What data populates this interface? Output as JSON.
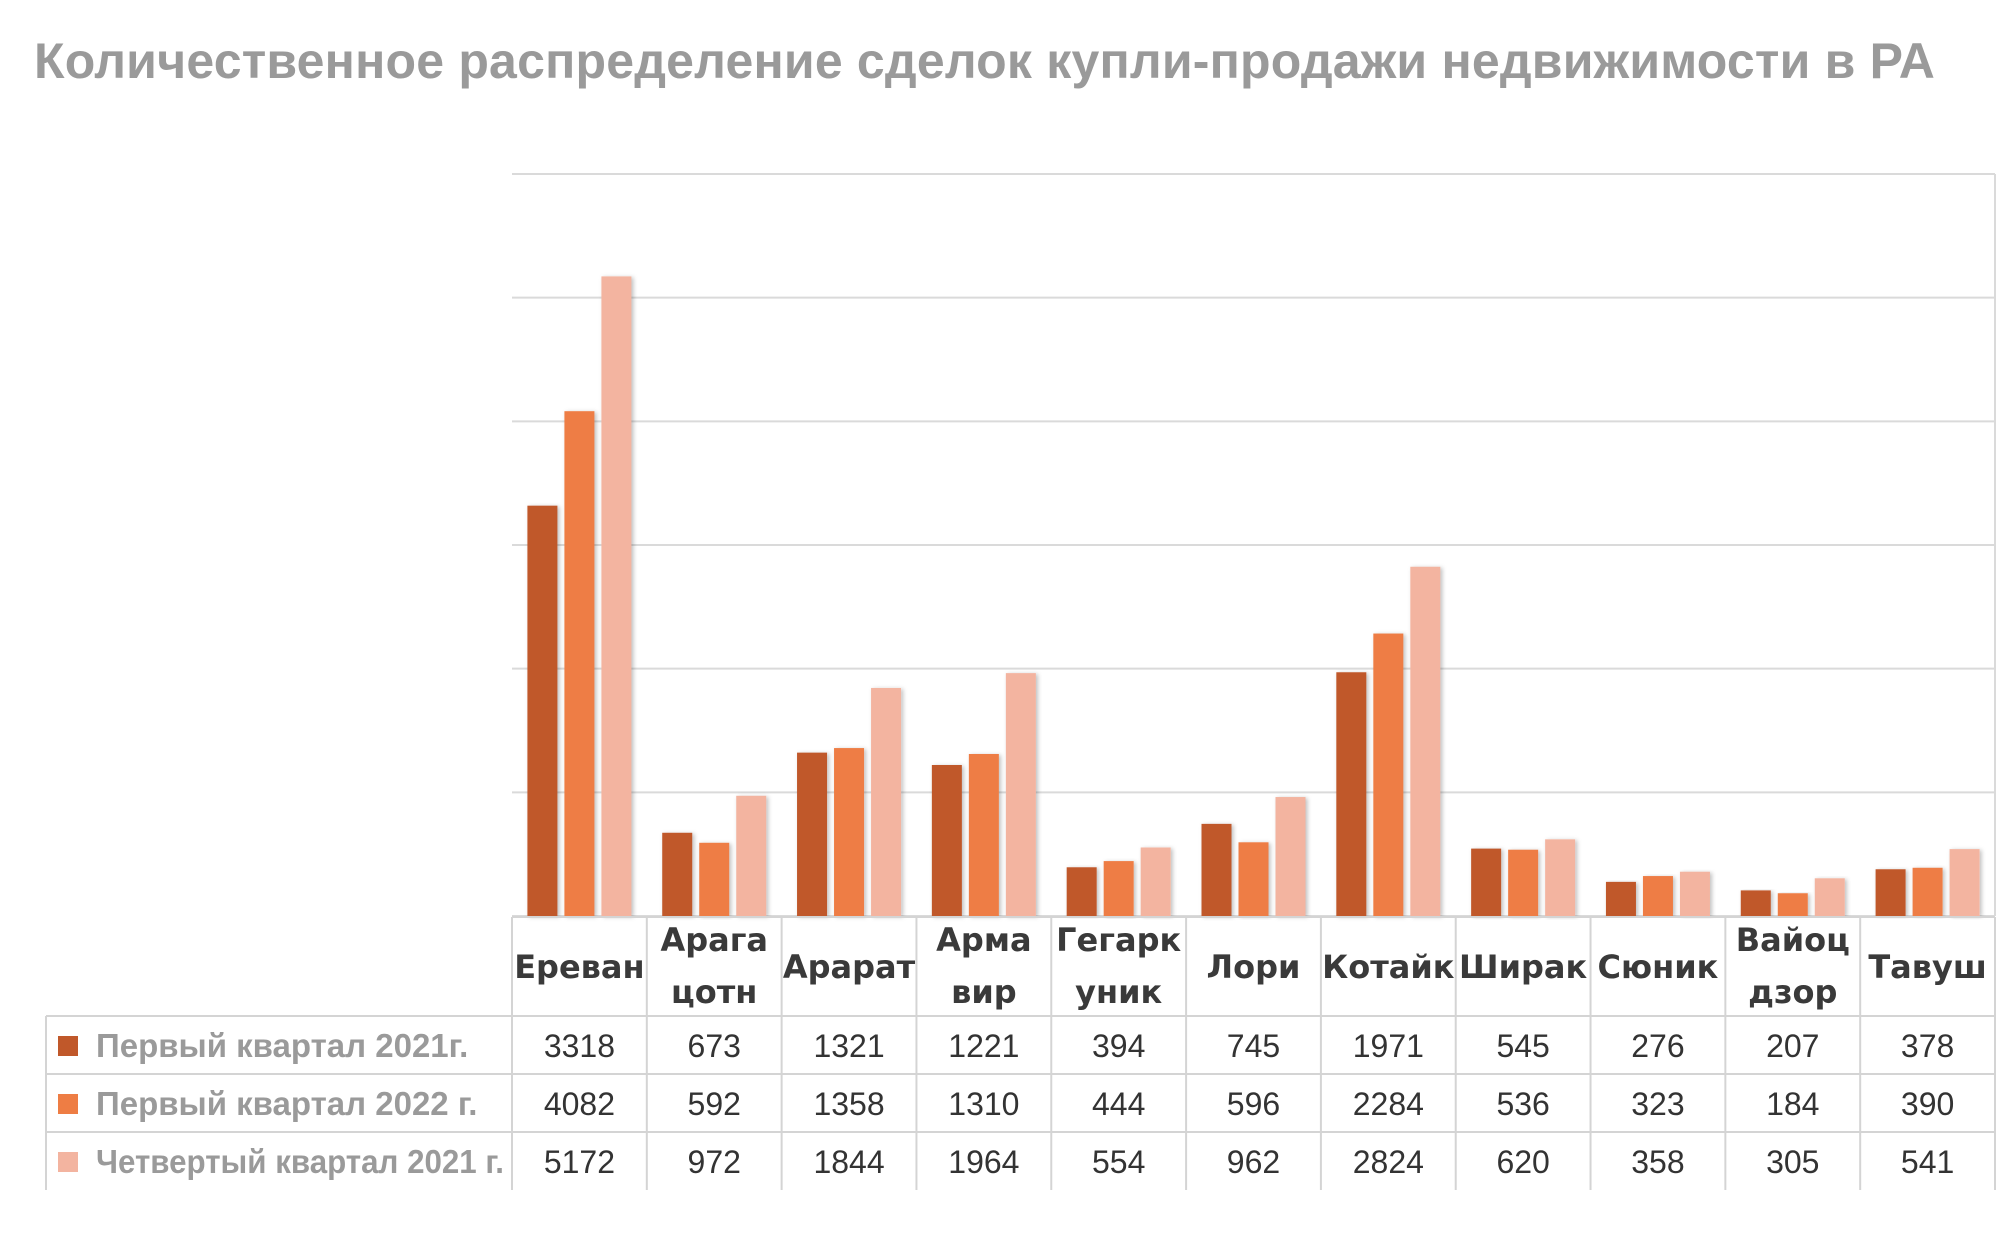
{
  "chart_data": {
    "type": "bar",
    "title": "Количественное распределение сделок купли-продажи недвижимости в РА",
    "categories": [
      "Ереван",
      "Арага цотн",
      "Арарат",
      "Арма вир",
      "Гегарк уник",
      "Лори",
      "Котайк",
      "Ширак",
      "Сюник",
      "Вайоц дзор",
      "Тавуш"
    ],
    "category_lines": [
      [
        "Ереван"
      ],
      [
        "Арага",
        "цотн"
      ],
      [
        "Арарат"
      ],
      [
        "Арма",
        "вир"
      ],
      [
        "Гегарк",
        "уник"
      ],
      [
        "Лори"
      ],
      [
        "Котайк"
      ],
      [
        "Ширак"
      ],
      [
        "Сюник"
      ],
      [
        "Вайоц",
        "дзор"
      ],
      [
        "Тавуш"
      ]
    ],
    "series": [
      {
        "name": "Первый квартал 2021г.",
        "color": "#c0582a",
        "values": [
          3318,
          673,
          1321,
          1221,
          394,
          745,
          1971,
          545,
          276,
          207,
          378
        ]
      },
      {
        "name": "Первый квартал 2022 г.",
        "color": "#ee7d44",
        "values": [
          4082,
          592,
          1358,
          1310,
          444,
          596,
          2284,
          536,
          323,
          184,
          390
        ]
      },
      {
        "name": "Четвертый квартал 2021 г.",
        "color": "#f3b4a0",
        "values": [
          5172,
          972,
          1844,
          1964,
          554,
          962,
          2824,
          620,
          358,
          305,
          541
        ]
      }
    ],
    "ylim": [
      0,
      6000
    ],
    "grid": true,
    "legend": "data-table"
  }
}
